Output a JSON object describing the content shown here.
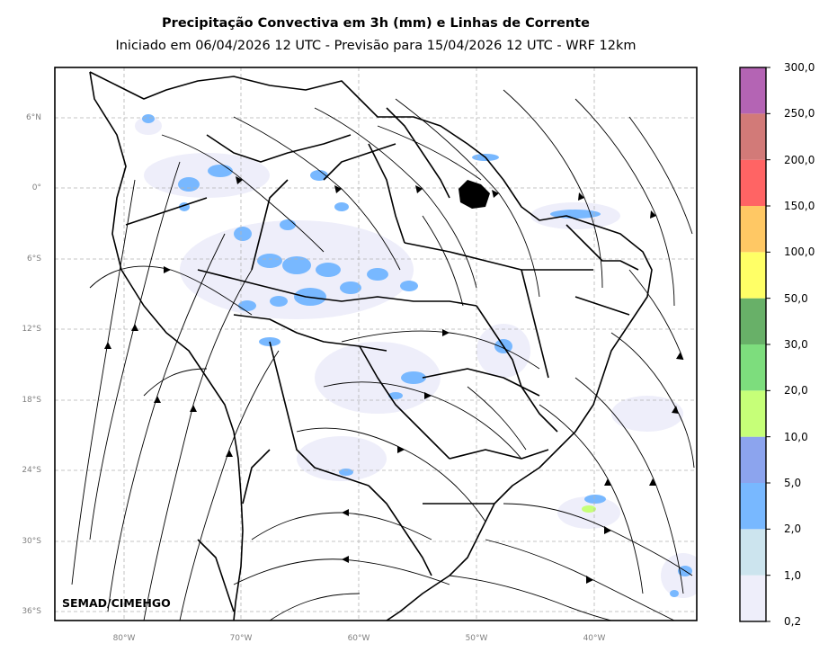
{
  "title": "Precipitação Convectiva em 3h (mm) e Linhas de Corrente",
  "subtitle": "Iniciado em 06/04/2026 12 UTC - Previsão para 15/04/2026 12 UTC - WRF 12km",
  "credit": "SEMAD/CIMEHGO",
  "lat_labels": [
    "6°N",
    "0°",
    "6°S",
    "12°S",
    "18°S",
    "24°S",
    "30°S",
    "36°S"
  ],
  "lon_labels": [
    "80°W",
    "70°W",
    "60°W",
    "50°W",
    "40°W"
  ],
  "colorbar": {
    "labels": [
      "0,2",
      "1,0",
      "2,0",
      "5,0",
      "10,0",
      "20,0",
      "30,0",
      "50,0",
      "100,0",
      "150,0",
      "200,0",
      "250,0",
      "300,0"
    ],
    "colors": [
      "#eeeefa",
      "#cce4ee",
      "#78b8ff",
      "#8ca4ee",
      "#c6ff78",
      "#7ddd7d",
      "#68b068",
      "#ffff66",
      "#ffc864",
      "#ff6464",
      "#d27a78",
      "#b464b4"
    ]
  },
  "colors": {
    "precip_light": "#eeeefa",
    "precip_medium": "#78b8ff",
    "precip_strong": "#c6ff78",
    "grid": "#b4b4b4",
    "border": "#000000"
  }
}
